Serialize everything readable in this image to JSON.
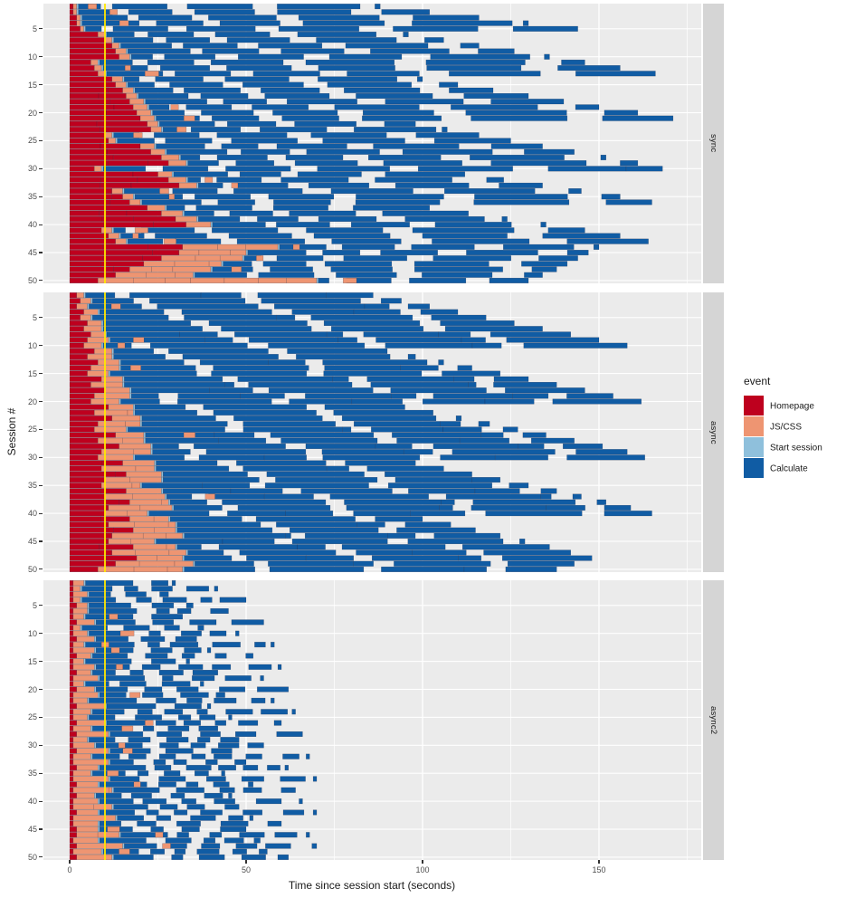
{
  "chart_data": {
    "type": "gantt",
    "xlabel": "Time since session start (seconds)",
    "ylabel": "Session #",
    "x_ticks": [
      0,
      50,
      100,
      150
    ],
    "x_minor_ticks": [
      25,
      75,
      125,
      175
    ],
    "x_range": [
      -8,
      179
    ],
    "y_ticks": [
      5,
      10,
      15,
      20,
      25,
      30,
      35,
      40,
      45,
      50
    ],
    "sessions_per_facet": 50,
    "vline_x": 10,
    "grid": true,
    "legend_position": "right",
    "legend": {
      "title": "event",
      "items": [
        {
          "key": "homepage",
          "label": "Homepage",
          "color": "#BE001E"
        },
        {
          "key": "jscss",
          "label": "JS/CSS",
          "color": "#EE9572"
        },
        {
          "key": "start",
          "label": "Start session",
          "color": "#8FC0DC"
        },
        {
          "key": "calculate",
          "label": "Calculate",
          "color": "#105CA4"
        }
      ]
    },
    "colors": {
      "panel_bg": "#EBEBEB",
      "strip_bg": "#D5D5D5",
      "grid": "#FFFFFF",
      "tick_text": "#4D4D4D",
      "title_text": "#1A1A1A",
      "bar_border": "rgba(28,28,52,0.5)",
      "vline": "#FFE800"
    },
    "facets": [
      {
        "label": "sync",
        "seed": 101,
        "homepage": [
          1,
          1,
          2,
          2,
          3,
          8,
          10,
          12,
          13,
          14,
          6,
          7,
          8,
          12,
          13,
          15,
          16,
          17,
          18,
          19,
          20,
          22,
          23,
          10,
          11,
          20,
          23,
          26,
          28,
          7,
          25,
          28,
          31,
          12,
          15,
          17,
          22,
          26,
          30,
          33,
          9,
          11,
          13,
          32,
          31,
          26,
          21,
          17,
          13,
          8
        ],
        "jscss": [
          1,
          1,
          1,
          1,
          1,
          2,
          2,
          2,
          3,
          3,
          2,
          2,
          2,
          3,
          3,
          3,
          3,
          4,
          4,
          4,
          4,
          3,
          3,
          2,
          2,
          4,
          4,
          5,
          5,
          2,
          4,
          5,
          5,
          3,
          3,
          3,
          5,
          6,
          6,
          7,
          3,
          3,
          3,
          27,
          19,
          23,
          22,
          23,
          22,
          62
        ],
        "end": [
          88,
          102,
          116,
          130,
          144,
          96,
          106,
          116,
          126,
          136,
          146,
          156,
          166,
          100,
          110,
          120,
          130,
          140,
          150,
          161,
          171,
          98,
          107,
          116,
          125,
          134,
          143,
          152,
          161,
          168,
          112,
          123,
          134,
          145,
          156,
          165,
          102,
          113,
          124,
          135,
          146,
          156,
          164,
          150,
          147,
          144,
          141,
          138,
          134,
          130
        ],
        "gaps": {
          "mode": "drift",
          "start_off": 3,
          "period": 15,
          "period_grow": 6,
          "w0": 3,
          "w_grow": 1.6,
          "drift": 3.3,
          "jitter_p": 5,
          "jitter_w": 2
        },
        "extra_jscss_prob": 0.3
      },
      {
        "label": "async",
        "seed": 202,
        "homepage": [
          2,
          3,
          2,
          4,
          3,
          5,
          4,
          6,
          5,
          4,
          7,
          5,
          8,
          6,
          5,
          9,
          6,
          10,
          7,
          6,
          11,
          7,
          12,
          8,
          7,
          13,
          8,
          14,
          9,
          8,
          15,
          9,
          16,
          10,
          9,
          16,
          10,
          17,
          11,
          10,
          17,
          11,
          18,
          12,
          11,
          18,
          12,
          19,
          13,
          8
        ],
        "jscss": [
          2,
          3,
          3,
          4,
          3,
          4,
          5,
          4,
          6,
          5,
          5,
          7,
          6,
          8,
          6,
          6,
          9,
          7,
          10,
          8,
          7,
          11,
          8,
          12,
          9,
          8,
          13,
          9,
          14,
          10,
          9,
          15,
          10,
          16,
          11,
          10,
          17,
          11,
          18,
          12,
          11,
          19,
          12,
          20,
          13,
          12,
          21,
          13,
          22,
          24
        ],
        "end": [
          86,
          94,
          102,
          110,
          118,
          126,
          134,
          142,
          150,
          158,
          90,
          98,
          106,
          114,
          122,
          130,
          138,
          146,
          154,
          162,
          95,
          103,
          111,
          119,
          127,
          135,
          143,
          151,
          158,
          163,
          98,
          106,
          114,
          122,
          130,
          138,
          145,
          152,
          159,
          165,
          100,
          108,
          115,
          122,
          129,
          136,
          142,
          148,
          143,
          138
        ],
        "gaps": {
          "mode": "drift",
          "start_off": 5,
          "period": 30,
          "period_grow": 1.5,
          "w0": 4,
          "w_grow": 0.4,
          "drift": 3.3,
          "jitter_p": 6,
          "jitter_w": 1.5
        },
        "extra_jscss_prob": 0.12
      },
      {
        "label": "async2",
        "seed": 303,
        "homepage": [
          1,
          1,
          1,
          1,
          2,
          1,
          1,
          2,
          1,
          1,
          2,
          1,
          1,
          2,
          1,
          1,
          2,
          1,
          1,
          2,
          1,
          1,
          2,
          1,
          1,
          2,
          1,
          2,
          1,
          1,
          2,
          1,
          1,
          2,
          1,
          1,
          2,
          1,
          2,
          1,
          1,
          2,
          1,
          1,
          2,
          2,
          1,
          2,
          1,
          2
        ],
        "jscss": [
          3,
          2,
          4,
          2,
          3,
          4,
          3,
          5,
          2,
          4,
          5,
          3,
          6,
          4,
          3,
          6,
          4,
          7,
          3,
          5,
          7,
          4,
          8,
          5,
          4,
          8,
          5,
          9,
          4,
          6,
          9,
          5,
          10,
          6,
          5,
          10,
          6,
          11,
          5,
          7,
          11,
          6,
          12,
          7,
          6,
          12,
          7,
          13,
          8,
          10
        ],
        "end": [
          30,
          42,
          28,
          50,
          35,
          45,
          32,
          55,
          38,
          48,
          36,
          58,
          40,
          52,
          34,
          60,
          42,
          55,
          38,
          62,
          44,
          58,
          40,
          64,
          46,
          60,
          42,
          66,
          48,
          55,
          46,
          68,
          50,
          62,
          44,
          70,
          52,
          64,
          46,
          66,
          48,
          70,
          52,
          60,
          50,
          68,
          54,
          70,
          56,
          62
        ],
        "gaps": {
          "mode": "random",
          "first_run_min": 6,
          "first_run_max": 14,
          "gap_min": 2,
          "gap_max": 6,
          "run_min": 3,
          "run_max": 8
        },
        "extra_jscss_prob": 0.35
      }
    ]
  }
}
